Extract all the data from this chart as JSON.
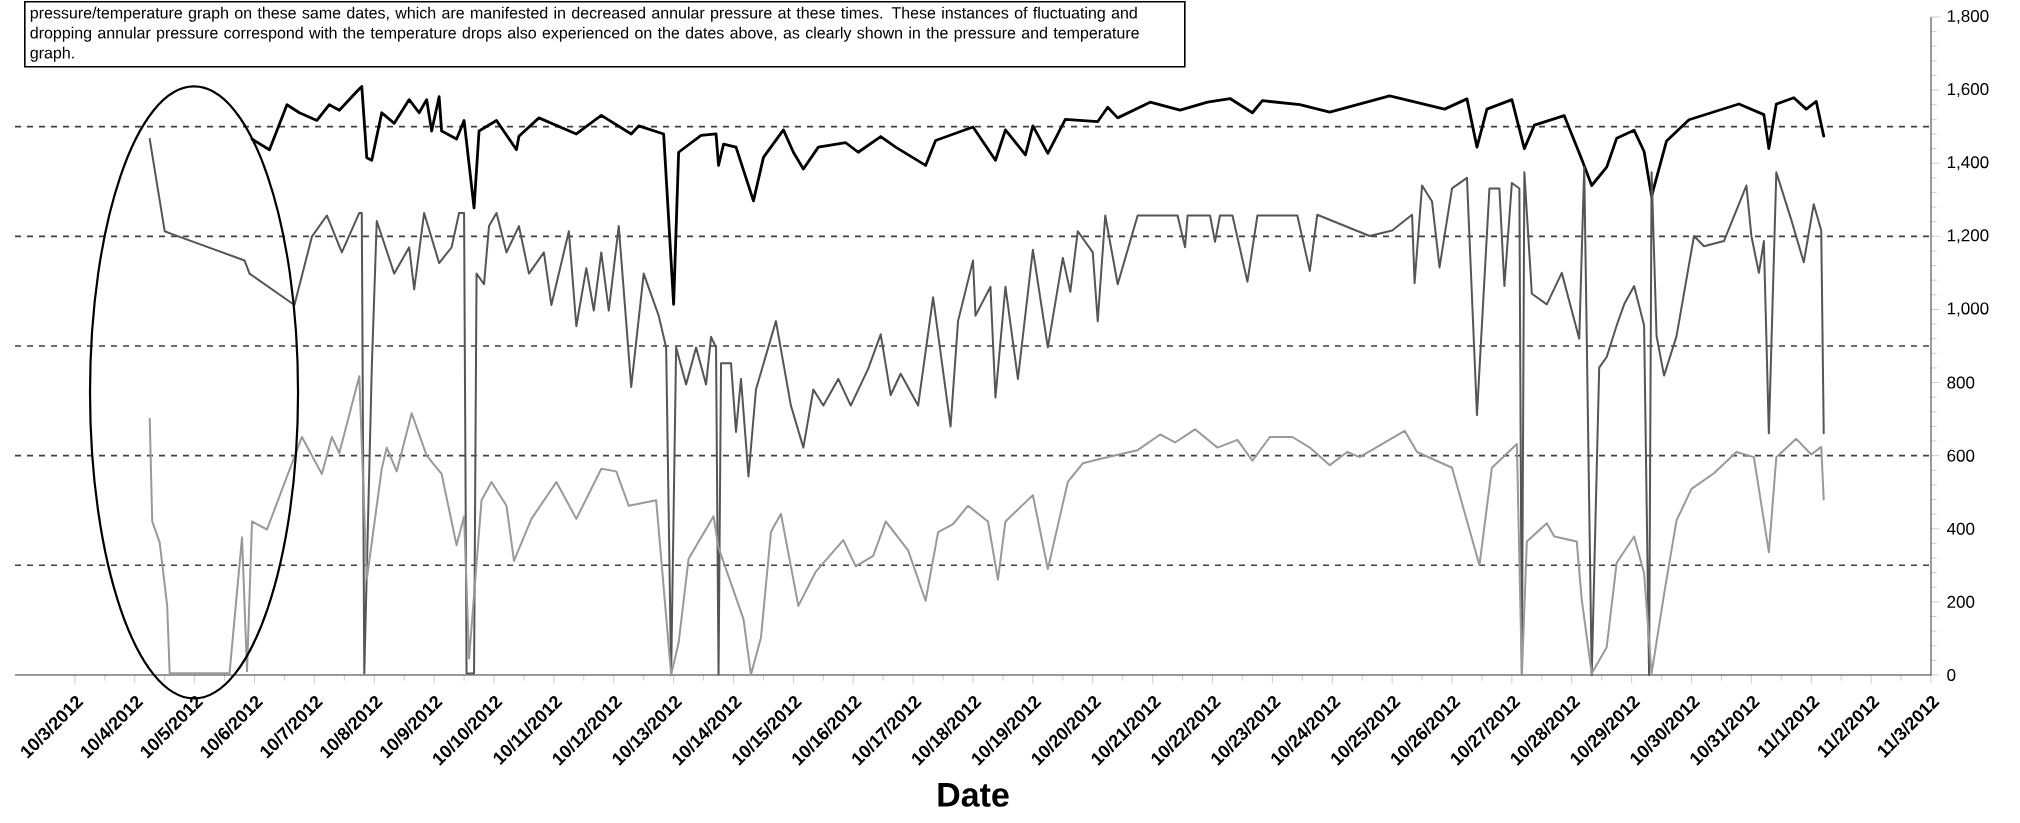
{
  "chart_data": {
    "type": "line",
    "xlabel": "Date",
    "annotations": [
      "pressure/temperature graph on these same dates, which are manifested in decreased annular pressure at these times. These instances of fluctuating and dropping annular pressure correspond with the temperature drops also experienced on the dates above, as clearly shown in the pressure and temperature graph."
    ],
    "xlim": [
      "2012-10-02",
      "2012-11-03"
    ],
    "xticks": [
      {
        "value": "2012-10-03",
        "label": "10/3/2012"
      },
      {
        "value": "2012-10-04",
        "label": "10/4/2012"
      },
      {
        "value": "2012-10-05",
        "label": "10/5/2012"
      },
      {
        "value": "2012-10-06",
        "label": "10/6/2012"
      },
      {
        "value": "2012-10-07",
        "label": "10/7/2012"
      },
      {
        "value": "2012-10-08",
        "label": "10/8/2012"
      },
      {
        "value": "2012-10-09",
        "label": "10/9/2012"
      },
      {
        "value": "2012-10-10",
        "label": "10/10/2012"
      },
      {
        "value": "2012-10-11",
        "label": "10/11/2012"
      },
      {
        "value": "2012-10-12",
        "label": "10/12/2012"
      },
      {
        "value": "2012-10-13",
        "label": "10/13/2012"
      },
      {
        "value": "2012-10-14",
        "label": "10/14/2012"
      },
      {
        "value": "2012-10-15",
        "label": "10/15/2012"
      },
      {
        "value": "2012-10-16",
        "label": "10/16/2012"
      },
      {
        "value": "2012-10-17",
        "label": "10/17/2012"
      },
      {
        "value": "2012-10-18",
        "label": "10/18/2012"
      },
      {
        "value": "2012-10-19",
        "label": "10/19/2012"
      },
      {
        "value": "2012-10-20",
        "label": "10/20/2012"
      },
      {
        "value": "2012-10-21",
        "label": "10/21/2012"
      },
      {
        "value": "2012-10-22",
        "label": "10/22/2012"
      },
      {
        "value": "2012-10-23",
        "label": "10/23/2012"
      },
      {
        "value": "2012-10-24",
        "label": "10/24/2012"
      },
      {
        "value": "2012-10-25",
        "label": "10/25/2012"
      },
      {
        "value": "2012-10-26",
        "label": "10/26/2012"
      },
      {
        "value": "2012-10-27",
        "label": "10/27/2012"
      },
      {
        "value": "2012-10-28",
        "label": "10/28/2012"
      },
      {
        "value": "2012-10-29",
        "label": "10/29/2012"
      },
      {
        "value": "2012-10-30",
        "label": "10/30/2012"
      },
      {
        "value": "2012-10-31",
        "label": "10/31/2012"
      },
      {
        "value": "2012-11-01",
        "label": "11/1/2012"
      },
      {
        "value": "2012-11-02",
        "label": "11/2/2012"
      },
      {
        "value": "2012-11-03",
        "label": "11/3/2012"
      }
    ],
    "ylim": [
      0,
      1800
    ],
    "yticks": [
      0,
      200,
      400,
      600,
      800,
      {
        "value": 1000,
        "label": "1,000"
      },
      {
        "value": 1200,
        "label": "1,200"
      },
      {
        "value": 1400,
        "label": "1,400"
      },
      {
        "value": 1600,
        "label": "1,600"
      },
      {
        "value": 1800,
        "label": "1,800"
      }
    ],
    "ref_lines": [
      {
        "axis": "y",
        "value": 300,
        "color": "#404040",
        "line_style": "dashed"
      },
      {
        "axis": "y",
        "value": 600,
        "color": "#404040",
        "line_style": "dashed"
      },
      {
        "axis": "y",
        "value": 900,
        "color": "#404040",
        "line_style": "dashed"
      },
      {
        "axis": "y",
        "value": 1200,
        "color": "#404040",
        "line_style": "dashed"
      },
      {
        "axis": "y",
        "value": 1500,
        "color": "#404040",
        "line_style": "dashed"
      }
    ],
    "marker": "none",
    "line_style": "solid",
    "series": [
      {
        "color": "#000000",
        "x": [
          "2012-10-05T23:00",
          "2012-10-06T06:00",
          "2012-10-06T13:00",
          "2012-10-06T18:00",
          "2012-10-07T01:00",
          "2012-10-07T06:00",
          "2012-10-07T10:00",
          "2012-10-07T17:00",
          "2012-10-07T19:00",
          "2012-10-07T21:00",
          "2012-10-07T23:00",
          "2012-10-08T03:00",
          "2012-10-08T08:00",
          "2012-10-08T14:00",
          "2012-10-08T18:00",
          "2012-10-08T21:00",
          "2012-10-08T23:00",
          "2012-10-09T02:00",
          "2012-10-09T03:00",
          "2012-10-09T09:00",
          "2012-10-09T12:00",
          "2012-10-09T16:00",
          "2012-10-09T18:00",
          "2012-10-10T01:00",
          "2012-10-10T09:00",
          "2012-10-10T10:00",
          "2012-10-10T18:00",
          "2012-10-11T09:00",
          "2012-10-11T19:00",
          "2012-10-12T07:00",
          "2012-10-12T10:00",
          "2012-10-12T20:00",
          "2012-10-13T00:00",
          "2012-10-13T02:00",
          "2012-10-13T11:00",
          "2012-10-13T17:00",
          "2012-10-13T18:00",
          "2012-10-13T20:00",
          "2012-10-14T01:00",
          "2012-10-14T08:00",
          "2012-10-14T12:00",
          "2012-10-14T20:00",
          "2012-10-15T00:00",
          "2012-10-15T04:00",
          "2012-10-15T10:00",
          "2012-10-15T21:00",
          "2012-10-16T02:00",
          "2012-10-16T11:00",
          "2012-10-16T17:00",
          "2012-10-17T05:00",
          "2012-10-17T09:00",
          "2012-10-18T00:00",
          "2012-10-18T09:00",
          "2012-10-18T13:00",
          "2012-10-18T21:00",
          "2012-10-19T00:00",
          "2012-10-19T06:00",
          "2012-10-19T13:00",
          "2012-10-20T02:00",
          "2012-10-20T06:00",
          "2012-10-20T10:00",
          "2012-10-20T23:00",
          "2012-10-21T11:00",
          "2012-10-21T22:00",
          "2012-10-22T07:00",
          "2012-10-22T16:00",
          "2012-10-22T20:00",
          "2012-10-23T11:00",
          "2012-10-23T23:00",
          "2012-10-24T23:00",
          "2012-10-25T21:00",
          "2012-10-26T06:00",
          "2012-10-26T10:00",
          "2012-10-26T14:00",
          "2012-10-27T00:00",
          "2012-10-27T05:00",
          "2012-10-27T09:00",
          "2012-10-27T21:00",
          "2012-10-28T04:00",
          "2012-10-28T08:00",
          "2012-10-28T14:00",
          "2012-10-28T18:00",
          "2012-10-29T01:00",
          "2012-10-29T05:00",
          "2012-10-29T08:00",
          "2012-10-29T14:00",
          "2012-10-29T23:00",
          "2012-10-30T19:00",
          "2012-10-31T05:00",
          "2012-10-31T07:00",
          "2012-10-31T10:00",
          "2012-10-31T17:00",
          "2012-10-31T22:00",
          "2012-11-01T02:00",
          "2012-11-01T05:00"
        ],
        "values": [
          1466,
          1437,
          1560,
          1538,
          1517,
          1560,
          1545,
          1596,
          1610,
          1415,
          1408,
          1538,
          1509,
          1574,
          1538,
          1574,
          1488,
          1582,
          1488,
          1466,
          1517,
          1278,
          1488,
          1517,
          1437,
          1474,
          1524,
          1480,
          1531,
          1480,
          1502,
          1480,
          1014,
          1430,
          1476,
          1480,
          1394,
          1452,
          1444,
          1297,
          1416,
          1491,
          1430,
          1384,
          1444,
          1456,
          1430,
          1473,
          1444,
          1394,
          1462,
          1499,
          1408,
          1491,
          1423,
          1502,
          1427,
          1520,
          1514,
          1553,
          1524,
          1567,
          1545,
          1567,
          1577,
          1538,
          1571,
          1560,
          1540,
          1584,
          1548,
          1576,
          1444,
          1548,
          1574,
          1440,
          1504,
          1530,
          1411,
          1339,
          1389,
          1468,
          1490,
          1432,
          1310,
          1461,
          1519,
          1562,
          1533,
          1440,
          1562,
          1579,
          1548,
          1569,
          1474
        ]
      },
      {
        "color": "#555555",
        "x": [
          "2012-10-04T06:00",
          "2012-10-04T12:00",
          "2012-10-04T15:00",
          "2012-10-05T20:00",
          "2012-10-05T22:00",
          "2012-10-06T16:00",
          "2012-10-06T23:00",
          "2012-10-07T05:00",
          "2012-10-07T11:00",
          "2012-10-07T18:00",
          "2012-10-07T19:00",
          "2012-10-07T20:00",
          "2012-10-07T23:00",
          "2012-10-08T01:00",
          "2012-10-08T08:00",
          "2012-10-08T14:00",
          "2012-10-08T16:00",
          "2012-10-08T20:00",
          "2012-10-09T02:00",
          "2012-10-09T07:00",
          "2012-10-09T10:00",
          "2012-10-09T12:00",
          "2012-10-09T13:00",
          "2012-10-09T16:00",
          "2012-10-09T17:00",
          "2012-10-09T20:00",
          "2012-10-09T22:00",
          "2012-10-10T01:00",
          "2012-10-10T05:00",
          "2012-10-10T10:00",
          "2012-10-10T14:00",
          "2012-10-10T20:00",
          "2012-10-10T23:00",
          "2012-10-11T06:00",
          "2012-10-11T09:00",
          "2012-10-11T13:00",
          "2012-10-11T16:00",
          "2012-10-11T19:00",
          "2012-10-11T22:00",
          "2012-10-12T02:00",
          "2012-10-12T07:00",
          "2012-10-12T12:00",
          "2012-10-12T18:00",
          "2012-10-12T21:00",
          "2012-10-12T23:00",
          "2012-10-13T01:00",
          "2012-10-13T05:00",
          "2012-10-13T09:00",
          "2012-10-13T13:00",
          "2012-10-13T15:00",
          "2012-10-13T17:00",
          "2012-10-13T18:00",
          "2012-10-13T19:00",
          "2012-10-13T23:00",
          "2012-10-14T01:00",
          "2012-10-14T03:00",
          "2012-10-14T06:00",
          "2012-10-14T09:00",
          "2012-10-14T17:00",
          "2012-10-14T23:00",
          "2012-10-15T04:00",
          "2012-10-15T08:00",
          "2012-10-15T12:00",
          "2012-10-15T18:00",
          "2012-10-15T23:00",
          "2012-10-16T06:00",
          "2012-10-16T11:00",
          "2012-10-16T15:00",
          "2012-10-16T19:00",
          "2012-10-17T02:00",
          "2012-10-17T08:00",
          "2012-10-17T15:00",
          "2012-10-17T18:00",
          "2012-10-18T00:00",
          "2012-10-18T01:00",
          "2012-10-18T07:00",
          "2012-10-18T09:00",
          "2012-10-18T13:00",
          "2012-10-18T18:00",
          "2012-10-19T00:00",
          "2012-10-19T06:00",
          "2012-10-19T12:00",
          "2012-10-19T15:00",
          "2012-10-19T18:00",
          "2012-10-20T00:00",
          "2012-10-20T02:00",
          "2012-10-20T05:00",
          "2012-10-20T10:00",
          "2012-10-20T18:00",
          "2012-10-21T10:00",
          "2012-10-21T13:00",
          "2012-10-21T14:00",
          "2012-10-21T23:00",
          "2012-10-22T01:00",
          "2012-10-22T03:00",
          "2012-10-22T08:00",
          "2012-10-22T14:00",
          "2012-10-22T18:00",
          "2012-10-23T10:00",
          "2012-10-23T15:00",
          "2012-10-23T18:00",
          "2012-10-24T15:00",
          "2012-10-25T00:00",
          "2012-10-25T08:00",
          "2012-10-25T09:00",
          "2012-10-25T12:00",
          "2012-10-25T16:00",
          "2012-10-25T19:00",
          "2012-10-26T00:00",
          "2012-10-26T06:00",
          "2012-10-26T10:00",
          "2012-10-26T15:00",
          "2012-10-26T19:00",
          "2012-10-26T21:00",
          "2012-10-27T00:00",
          "2012-10-27T03:00",
          "2012-10-27T04:00",
          "2012-10-27T05:00",
          "2012-10-27T08:00",
          "2012-10-27T14:00",
          "2012-10-27T20:00",
          "2012-10-28T03:00",
          "2012-10-28T05:00",
          "2012-10-28T08:00",
          "2012-10-28T11:00",
          "2012-10-28T14:00",
          "2012-10-28T18:00",
          "2012-10-28T21:00",
          "2012-10-29T01:00",
          "2012-10-29T05:00",
          "2012-10-29T07:00",
          "2012-10-29T08:00",
          "2012-10-29T10:00",
          "2012-10-29T13:00",
          "2012-10-29T18:00",
          "2012-10-30T01:00",
          "2012-10-30T05:00",
          "2012-10-30T13:00",
          "2012-10-30T22:00",
          "2012-10-31T00:00",
          "2012-10-31T03:00",
          "2012-10-31T05:00",
          "2012-10-31T07:00",
          "2012-10-31T10:00",
          "2012-10-31T16:00",
          "2012-10-31T21:00",
          "2012-11-01T01:00",
          "2012-11-01T04:00",
          "2012-11-01T05:00"
        ],
        "values": [
          1466,
          1214,
          1206,
          1134,
          1098,
          1012,
          1199,
          1257,
          1156,
          1264,
          1264,
          4,
          838,
          1242,
          1098,
          1170,
          1055,
          1264,
          1127,
          1170,
          1264,
          1264,
          4,
          4,
          1098,
          1069,
          1228,
          1264,
          1156,
          1228,
          1098,
          1156,
          1012,
          1214,
          954,
          1113,
          997,
          1156,
          997,
          1228,
          788,
          1098,
          983,
          896,
          1,
          896,
          795,
          896,
          795,
          925,
          896,
          1,
          853,
          853,
          665,
          810,
          543,
          781,
          968,
          737,
          622,
          781,
          737,
          810,
          737,
          838,
          932,
          766,
          824,
          737,
          1033,
          680,
          968,
          1134,
          983,
          1062,
          759,
          1062,
          810,
          1163,
          896,
          1141,
          1048,
          1214,
          1156,
          968,
          1257,
          1069,
          1257,
          1257,
          1170,
          1257,
          1257,
          1185,
          1257,
          1257,
          1076,
          1257,
          1257,
          1105,
          1259,
          1201,
          1216,
          1259,
          1072,
          1339,
          1295,
          1115,
          1331,
          1360,
          711,
          1331,
          1331,
          1064,
          1346,
          1331,
          0,
          1375,
          1043,
          1014,
          1100,
          920,
          1389,
          0,
          841,
          870,
          956,
          1014,
          1064,
          956,
          0,
          1375,
          927,
          819,
          927,
          1201,
          1173,
          1187,
          1339,
          1201,
          1100,
          1187,
          661,
          1375,
          1245,
          1129,
          1288,
          1216,
          661
        ]
      },
      {
        "color": "#999999",
        "x": [
          "2012-10-04T06:00",
          "2012-10-04T07:00",
          "2012-10-04T10:00",
          "2012-10-04T13:00",
          "2012-10-04T14:00",
          "2012-10-05T14:00",
          "2012-10-05T19:00",
          "2012-10-05T21:00",
          "2012-10-05T23:00",
          "2012-10-06T05:00",
          "2012-10-06T19:00",
          "2012-10-07T03:00",
          "2012-10-07T07:00",
          "2012-10-07T10:00",
          "2012-10-07T18:00",
          "2012-10-07T21:00",
          "2012-10-08T03:00",
          "2012-10-08T05:00",
          "2012-10-08T09:00",
          "2012-10-08T15:00",
          "2012-10-08T21:00",
          "2012-10-09T03:00",
          "2012-10-09T09:00",
          "2012-10-09T12:00",
          "2012-10-09T14:00",
          "2012-10-09T19:00",
          "2012-10-09T23:00",
          "2012-10-10T05:00",
          "2012-10-10T08:00",
          "2012-10-10T15:00",
          "2012-10-11T01:00",
          "2012-10-11T09:00",
          "2012-10-11T19:00",
          "2012-10-12T01:00",
          "2012-10-12T06:00",
          "2012-10-12T17:00",
          "2012-10-12T23:00",
          "2012-10-13T02:00",
          "2012-10-13T06:00",
          "2012-10-13T16:00",
          "2012-10-13T18:00",
          "2012-10-14T04:00",
          "2012-10-14T07:00",
          "2012-10-14T11:00",
          "2012-10-14T15:00",
          "2012-10-14T19:00",
          "2012-10-15T02:00",
          "2012-10-15T09:00",
          "2012-10-15T20:00",
          "2012-10-16T01:00",
          "2012-10-16T08:00",
          "2012-10-16T13:00",
          "2012-10-16T22:00",
          "2012-10-17T05:00",
          "2012-10-17T10:00",
          "2012-10-17T16:00",
          "2012-10-17T22:00",
          "2012-10-18T06:00",
          "2012-10-18T10:00",
          "2012-10-18T13:00",
          "2012-10-19T00:00",
          "2012-10-19T06:00",
          "2012-10-19T14:00",
          "2012-10-19T20:00",
          "2012-10-20T04:00",
          "2012-10-20T18:00",
          "2012-10-21T03:00",
          "2012-10-21T09:00",
          "2012-10-21T17:00",
          "2012-10-22T02:00",
          "2012-10-22T10:00",
          "2012-10-22T16:00",
          "2012-10-22T23:00",
          "2012-10-23T08:00",
          "2012-10-23T15:00",
          "2012-10-23T23:00",
          "2012-10-24T06:00",
          "2012-10-24T11:00",
          "2012-10-25T05:00",
          "2012-10-25T10:00",
          "2012-10-26T00:00",
          "2012-10-26T11:00",
          "2012-10-26T16:00",
          "2012-10-27T02:00",
          "2012-10-27T04:00",
          "2012-10-27T06:00",
          "2012-10-27T14:00",
          "2012-10-27T17:00",
          "2012-10-28T02:00",
          "2012-10-28T04:00",
          "2012-10-28T08:00",
          "2012-10-28T14:00",
          "2012-10-28T18:00",
          "2012-10-29T01:00",
          "2012-10-29T05:00",
          "2012-10-29T08:00",
          "2012-10-29T13:00",
          "2012-10-29T18:00",
          "2012-10-30T00:00",
          "2012-10-30T09:00",
          "2012-10-30T18:00",
          "2012-10-31T01:00",
          "2012-10-31T07:00",
          "2012-10-31T10:00",
          "2012-10-31T18:00",
          "2012-11-01T00:00",
          "2012-11-01T04:00",
          "2012-11-01T05:00"
        ],
        "values": [
          701,
          420,
          362,
          189,
          5,
          5,
          377,
          10,
          420,
          398,
          651,
          550,
          651,
          607,
          817,
          261,
          564,
          622,
          557,
          716,
          600,
          550,
          355,
          434,
          45,
          478,
          528,
          463,
          312,
          427,
          528,
          427,
          564,
          557,
          463,
          478,
          1,
          88,
          318,
          434,
          348,
          153,
          1,
          102,
          391,
          441,
          189,
          283,
          369,
          297,
          326,
          420,
          341,
          203,
          391,
          413,
          463,
          420,
          261,
          420,
          492,
          290,
          528,
          579,
          593,
          615,
          658,
          636,
          672,
          622,
          643,
          586,
          651,
          651,
          622,
          574,
          610,
          596,
          668,
          610,
          567,
          300,
          567,
          632,
          0,
          365,
          415,
          379,
          365,
          206,
          4,
          76,
          307,
          379,
          278,
          4,
          221,
          423,
          509,
          552,
          610,
          596,
          336,
          596,
          646,
          603,
          624,
          480
        ]
      }
    ]
  }
}
